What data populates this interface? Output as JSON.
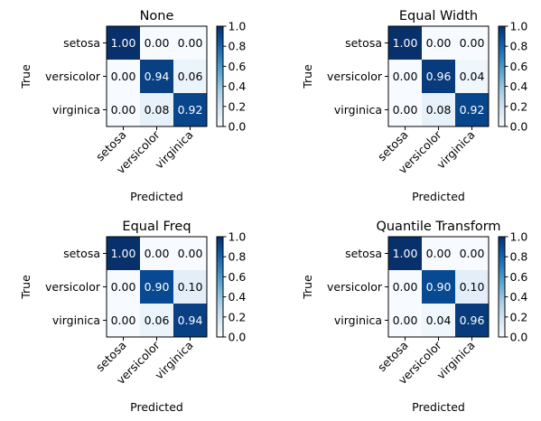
{
  "chart_data": [
    {
      "type": "heatmap",
      "title": "None",
      "xlabel": "Predicted",
      "ylabel": "True",
      "categories": [
        "setosa",
        "versicolor",
        "virginica"
      ],
      "matrix": [
        [
          1.0,
          0.0,
          0.0
        ],
        [
          0.0,
          0.94,
          0.06
        ],
        [
          0.0,
          0.08,
          0.92
        ]
      ],
      "colorbar": {
        "range": [
          0.0,
          1.0
        ],
        "ticks": [
          "0.0",
          "0.2",
          "0.4",
          "0.6",
          "0.8",
          "1.0"
        ],
        "colormap": "Blues"
      }
    },
    {
      "type": "heatmap",
      "title": "Equal Width",
      "xlabel": "Predicted",
      "ylabel": "True",
      "categories": [
        "setosa",
        "versicolor",
        "virginica"
      ],
      "matrix": [
        [
          1.0,
          0.0,
          0.0
        ],
        [
          0.0,
          0.96,
          0.04
        ],
        [
          0.0,
          0.08,
          0.92
        ]
      ],
      "colorbar": {
        "range": [
          0.0,
          1.0
        ],
        "ticks": [
          "0.0",
          "0.2",
          "0.4",
          "0.6",
          "0.8",
          "1.0"
        ],
        "colormap": "Blues"
      }
    },
    {
      "type": "heatmap",
      "title": "Equal Freq",
      "xlabel": "Predicted",
      "ylabel": "True",
      "categories": [
        "setosa",
        "versicolor",
        "virginica"
      ],
      "matrix": [
        [
          1.0,
          0.0,
          0.0
        ],
        [
          0.0,
          0.9,
          0.1
        ],
        [
          0.0,
          0.06,
          0.94
        ]
      ],
      "colorbar": {
        "range": [
          0.0,
          1.0
        ],
        "ticks": [
          "0.0",
          "0.2",
          "0.4",
          "0.6",
          "0.8",
          "1.0"
        ],
        "colormap": "Blues"
      }
    },
    {
      "type": "heatmap",
      "title": "Quantile Transform",
      "xlabel": "Predicted",
      "ylabel": "True",
      "categories": [
        "setosa",
        "versicolor",
        "virginica"
      ],
      "matrix": [
        [
          1.0,
          0.0,
          0.0
        ],
        [
          0.0,
          0.9,
          0.1
        ],
        [
          0.0,
          0.04,
          0.96
        ]
      ],
      "colorbar": {
        "range": [
          0.0,
          1.0
        ],
        "ticks": [
          "0.0",
          "0.2",
          "0.4",
          "0.6",
          "0.8",
          "1.0"
        ],
        "colormap": "Blues"
      }
    }
  ]
}
